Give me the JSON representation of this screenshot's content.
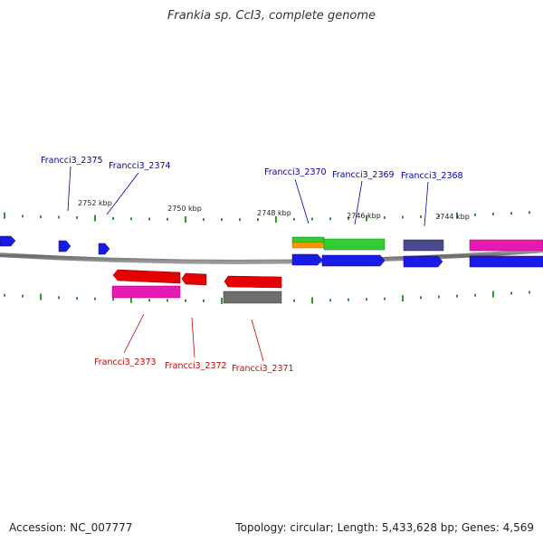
{
  "title": "Frankia sp. CcI3, complete genome",
  "footer": {
    "accession": "Accession: NC_007777",
    "topology": "Topology: circular; Length: 5,433,628 bp; Genes: 4,569"
  },
  "colors": {
    "blue": "#1a1ae6",
    "red": "#e60000",
    "green": "#33cc33",
    "orange": "#ff9900",
    "magenta": "#e61ab3",
    "slate": "#4a4a8c",
    "gray": "#6e6e6e",
    "tick": "#1a8c1a",
    "label_blue": "#0000aa",
    "label_red": "#cc0000"
  },
  "scale_labels": [
    "2752 kbp",
    "2750 kbp",
    "2748 kbp",
    "2746 kbp",
    "2744 kbp"
  ],
  "gene_labels_forward": [
    "Francci3_2375",
    "Francci3_2374",
    "Francci3_2370",
    "Francci3_2369",
    "Francci3_2368"
  ],
  "gene_labels_reverse": [
    "Francci3_2373",
    "Francci3_2372",
    "Francci3_2371"
  ]
}
